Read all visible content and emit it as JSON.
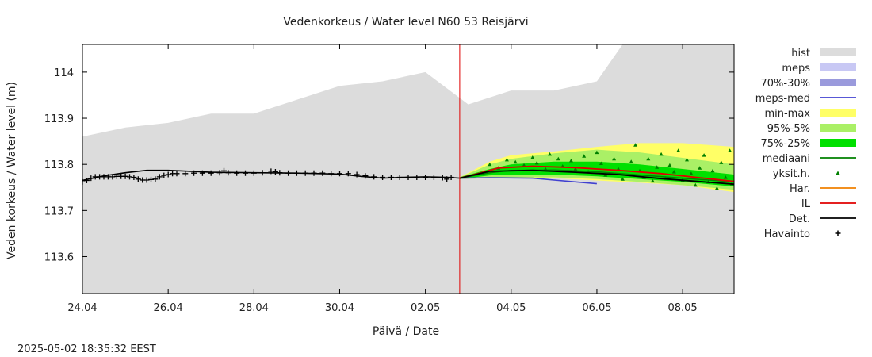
{
  "chart_data": {
    "type": "line",
    "title": "Vedenkorkeus / Water level   N60 53 Reisjärvi",
    "xlabel": "Päivä / Date",
    "ylabel": "Veden korkeus / Water level (m)",
    "timestamp": "2025-05-02 18:35:32 EEST",
    "x_range_days": [
      0,
      15.2
    ],
    "ylim": [
      113.52,
      114.06
    ],
    "x_ticks": [
      {
        "day": 0,
        "label": "24.04"
      },
      {
        "day": 2,
        "label": "26.04"
      },
      {
        "day": 4,
        "label": "28.04"
      },
      {
        "day": 6,
        "label": "30.04"
      },
      {
        "day": 8,
        "label": "02.05"
      },
      {
        "day": 10,
        "label": "04.05"
      },
      {
        "day": 12,
        "label": "06.05"
      },
      {
        "day": 14,
        "label": "08.05"
      }
    ],
    "y_ticks": [
      {
        "value": 113.6,
        "label": "113.6"
      },
      {
        "value": 113.7,
        "label": "113.7"
      },
      {
        "value": 113.8,
        "label": "113.8"
      },
      {
        "value": 113.9,
        "label": "113.9"
      },
      {
        "value": 114.0,
        "label": "114"
      }
    ],
    "now_day": 8.8,
    "legend": [
      {
        "label": "hist",
        "kind": "fill",
        "color": "#dcdcdc"
      },
      {
        "label": "meps",
        "kind": "fill",
        "color": "#c8c8f4"
      },
      {
        "label": "70%-30%",
        "kind": "fill",
        "color": "#9a9adc"
      },
      {
        "label": "meps-med",
        "kind": "line",
        "color": "#4040d0"
      },
      {
        "label": "min-max",
        "kind": "fill",
        "color": "#ffff66"
      },
      {
        "label": "95%-5%",
        "kind": "fill",
        "color": "#aaf066"
      },
      {
        "label": "75%-25%",
        "kind": "fill",
        "color": "#00e000"
      },
      {
        "label": "mediaani",
        "kind": "line",
        "color": "#008000"
      },
      {
        "label": "yksit.h.",
        "kind": "point-triangle",
        "color": "#008000"
      },
      {
        "label": "Har.",
        "kind": "line",
        "color": "#f08000"
      },
      {
        "label": "IL",
        "kind": "line",
        "color": "#e00000"
      },
      {
        "label": "Det.",
        "kind": "line",
        "color": "#000000"
      },
      {
        "label": "Havainto",
        "kind": "point-plus",
        "color": "#000000"
      }
    ],
    "hist_upper": [
      [
        0,
        113.86
      ],
      [
        1,
        113.88
      ],
      [
        2,
        113.89
      ],
      [
        3,
        113.91
      ],
      [
        4,
        113.91
      ],
      [
        6,
        113.97
      ],
      [
        7,
        113.98
      ],
      [
        8,
        114.0
      ],
      [
        9,
        113.93
      ],
      [
        10,
        113.96
      ],
      [
        11,
        113.96
      ],
      [
        12,
        113.98
      ],
      [
        12.6,
        114.06
      ],
      [
        15.2,
        114.06
      ]
    ],
    "observations": [
      [
        0.0,
        113.762
      ],
      [
        0.1,
        113.765
      ],
      [
        0.2,
        113.77
      ],
      [
        0.3,
        113.773
      ],
      [
        0.4,
        113.773
      ],
      [
        0.5,
        113.773
      ],
      [
        0.6,
        113.773
      ],
      [
        0.7,
        113.773
      ],
      [
        0.8,
        113.774
      ],
      [
        0.9,
        113.774
      ],
      [
        1.0,
        113.774
      ],
      [
        1.1,
        113.773
      ],
      [
        1.2,
        113.772
      ],
      [
        1.3,
        113.768
      ],
      [
        1.4,
        113.766
      ],
      [
        1.5,
        113.766
      ],
      [
        1.6,
        113.767
      ],
      [
        1.7,
        113.768
      ],
      [
        1.8,
        113.773
      ],
      [
        1.9,
        113.776
      ],
      [
        2.0,
        113.778
      ],
      [
        2.1,
        113.78
      ],
      [
        2.2,
        113.78
      ],
      [
        2.4,
        113.78
      ],
      [
        2.6,
        113.781
      ],
      [
        2.8,
        113.781
      ],
      [
        3.0,
        113.781
      ],
      [
        3.2,
        113.782
      ],
      [
        3.3,
        113.786
      ],
      [
        3.4,
        113.782
      ],
      [
        3.6,
        113.781
      ],
      [
        3.8,
        113.781
      ],
      [
        4.0,
        113.781
      ],
      [
        4.2,
        113.782
      ],
      [
        4.4,
        113.785
      ],
      [
        4.5,
        113.784
      ],
      [
        4.6,
        113.782
      ],
      [
        4.8,
        113.781
      ],
      [
        5.0,
        113.781
      ],
      [
        5.2,
        113.781
      ],
      [
        5.4,
        113.781
      ],
      [
        5.6,
        113.781
      ],
      [
        5.8,
        113.78
      ],
      [
        6.0,
        113.78
      ],
      [
        6.2,
        113.78
      ],
      [
        6.4,
        113.778
      ],
      [
        6.6,
        113.775
      ],
      [
        6.8,
        113.773
      ],
      [
        7.0,
        113.772
      ],
      [
        7.2,
        113.772
      ],
      [
        7.4,
        113.772
      ],
      [
        7.6,
        113.772
      ],
      [
        7.8,
        113.772
      ],
      [
        8.0,
        113.772
      ],
      [
        8.2,
        113.772
      ],
      [
        8.4,
        113.771
      ],
      [
        8.5,
        113.768
      ],
      [
        8.6,
        113.772
      ]
    ],
    "det_observed": [
      [
        0,
        113.765
      ],
      [
        0.5,
        113.775
      ],
      [
        1,
        113.782
      ],
      [
        1.5,
        113.787
      ],
      [
        2,
        113.787
      ],
      [
        3,
        113.783
      ],
      [
        4,
        113.782
      ],
      [
        5,
        113.781
      ],
      [
        6,
        113.779
      ],
      [
        6.5,
        113.774
      ],
      [
        7,
        113.77
      ],
      [
        7.5,
        113.772
      ],
      [
        8,
        113.773
      ],
      [
        8.5,
        113.772
      ],
      [
        8.8,
        113.77
      ]
    ],
    "minmax_band": [
      [
        8.8,
        113.768,
        113.772
      ],
      [
        9.5,
        113.77,
        113.806
      ],
      [
        10,
        113.77,
        113.82
      ],
      [
        11,
        113.77,
        113.828
      ],
      [
        12,
        113.765,
        113.838
      ],
      [
        13,
        113.76,
        113.846
      ],
      [
        14,
        113.755,
        113.846
      ],
      [
        15.2,
        113.74,
        113.838
      ]
    ],
    "p95_5_band": [
      [
        8.8,
        113.768,
        113.772
      ],
      [
        9.5,
        113.772,
        113.8
      ],
      [
        10,
        113.772,
        113.812
      ],
      [
        11,
        113.772,
        113.824
      ],
      [
        12,
        113.768,
        113.832
      ],
      [
        13,
        113.762,
        113.826
      ],
      [
        14,
        113.755,
        113.814
      ],
      [
        15.2,
        113.745,
        113.8
      ]
    ],
    "p75_25_band": [
      [
        8.8,
        113.768,
        113.772
      ],
      [
        9.5,
        113.776,
        113.79
      ],
      [
        10,
        113.778,
        113.8
      ],
      [
        11,
        113.778,
        113.806
      ],
      [
        12,
        113.774,
        113.806
      ],
      [
        13,
        113.768,
        113.8
      ],
      [
        14,
        113.762,
        113.79
      ],
      [
        15.2,
        113.752,
        113.778
      ]
    ],
    "mediaani": [
      [
        8.8,
        113.77
      ],
      [
        9.5,
        113.782
      ],
      [
        10,
        113.787
      ],
      [
        11,
        113.788
      ],
      [
        12,
        113.784
      ],
      [
        13,
        113.777
      ],
      [
        14,
        113.77
      ],
      [
        15.2,
        113.762
      ]
    ],
    "meps_med": [
      [
        8.8,
        113.77
      ],
      [
        9.5,
        113.771
      ],
      [
        10.5,
        113.77
      ],
      [
        11,
        113.766
      ],
      [
        11.5,
        113.762
      ],
      [
        12,
        113.758
      ]
    ],
    "il": [
      [
        8.8,
        113.77
      ],
      [
        9.3,
        113.782
      ],
      [
        9.7,
        113.792
      ],
      [
        10.5,
        113.796
      ],
      [
        11.5,
        113.793
      ],
      [
        12.5,
        113.787
      ],
      [
        13.5,
        113.78
      ],
      [
        14.5,
        113.77
      ],
      [
        15.2,
        113.763
      ]
    ],
    "det_forecast": [
      [
        8.8,
        113.77
      ],
      [
        9.5,
        113.785
      ],
      [
        10.5,
        113.787
      ],
      [
        11.5,
        113.783
      ],
      [
        12.5,
        113.778
      ],
      [
        13.5,
        113.769
      ],
      [
        14.5,
        113.762
      ],
      [
        15.2,
        113.757
      ]
    ],
    "ensemble_points": [
      [
        9.5,
        113.8
      ],
      [
        9.7,
        113.792
      ],
      [
        9.9,
        113.81
      ],
      [
        10.1,
        113.805
      ],
      [
        10.3,
        113.798
      ],
      [
        10.5,
        113.815
      ],
      [
        10.6,
        113.803
      ],
      [
        10.8,
        113.79
      ],
      [
        10.9,
        113.822
      ],
      [
        11.1,
        113.812
      ],
      [
        11.2,
        113.796
      ],
      [
        11.4,
        113.808
      ],
      [
        11.5,
        113.79
      ],
      [
        11.7,
        113.818
      ],
      [
        11.8,
        113.784
      ],
      [
        12.0,
        113.826
      ],
      [
        12.1,
        113.802
      ],
      [
        12.2,
        113.777
      ],
      [
        12.4,
        113.812
      ],
      [
        12.5,
        113.79
      ],
      [
        12.6,
        113.768
      ],
      [
        12.8,
        113.806
      ],
      [
        12.9,
        113.842
      ],
      [
        13.0,
        113.786
      ],
      [
        13.1,
        113.772
      ],
      [
        13.2,
        113.812
      ],
      [
        13.3,
        113.764
      ],
      [
        13.4,
        113.794
      ],
      [
        13.5,
        113.822
      ],
      [
        13.6,
        113.77
      ],
      [
        13.7,
        113.798
      ],
      [
        13.8,
        113.784
      ],
      [
        13.9,
        113.83
      ],
      [
        14.0,
        113.766
      ],
      [
        14.1,
        113.81
      ],
      [
        14.2,
        113.78
      ],
      [
        14.3,
        113.755
      ],
      [
        14.4,
        113.792
      ],
      [
        14.5,
        113.82
      ],
      [
        14.6,
        113.762
      ],
      [
        14.7,
        113.786
      ],
      [
        14.8,
        113.748
      ],
      [
        14.9,
        113.804
      ],
      [
        15.0,
        113.772
      ],
      [
        15.1,
        113.83
      ],
      [
        15.15,
        113.758
      ]
    ]
  }
}
